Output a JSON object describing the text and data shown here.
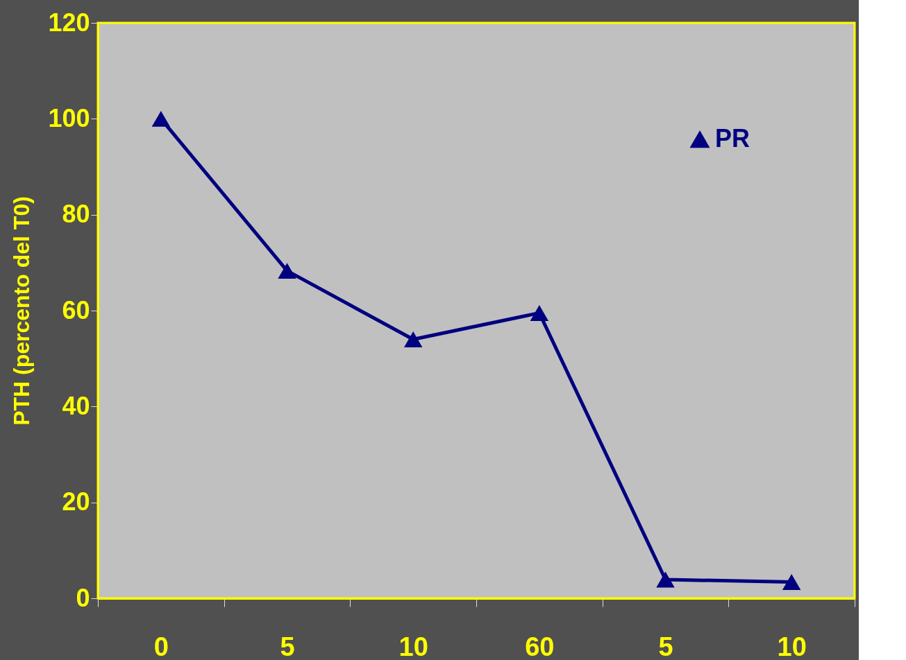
{
  "chart_data": {
    "type": "line",
    "ylabel": "PTH (percento del T0)",
    "categories": [
      "0",
      "5",
      "10",
      "60",
      "5",
      "10"
    ],
    "series": [
      {
        "name": "PR",
        "color": "#000080",
        "values": [
          100,
          68.3,
          54,
          59.5,
          3.9,
          3.4
        ]
      }
    ],
    "ylim": [
      0,
      120
    ],
    "yticks": [
      0,
      20,
      40,
      60,
      80,
      100,
      120
    ],
    "grid": false,
    "legend": "top right",
    "marker": "triangle",
    "line_style": "solid"
  }
}
